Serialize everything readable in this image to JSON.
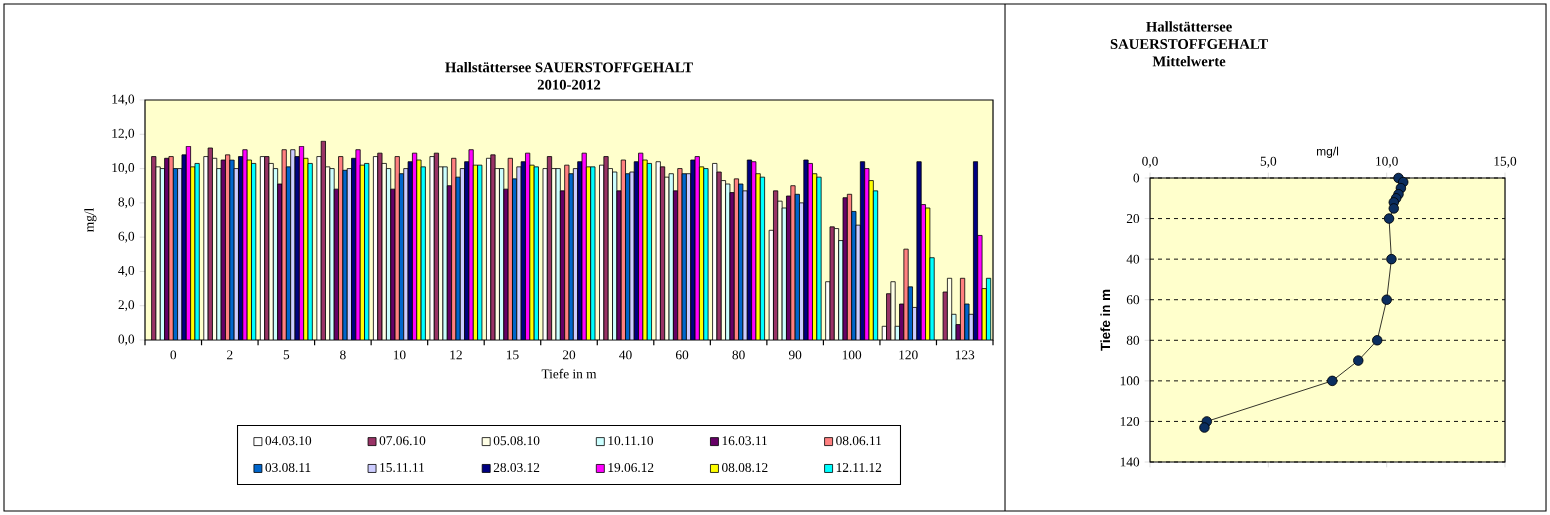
{
  "chart_data": [
    {
      "type": "bar",
      "title": "Hallstättersee SAUERSTOFFGEHALT",
      "subtitle": "2010-2012",
      "xlabel": "Tiefe in m",
      "ylabel": "mg/l",
      "categories": [
        "0",
        "2",
        "5",
        "8",
        "10",
        "12",
        "15",
        "20",
        "40",
        "60",
        "80",
        "90",
        "100",
        "120",
        "123"
      ],
      "ylim": [
        0,
        14
      ],
      "yticks": [
        {
          "value": 0,
          "label": "0,0"
        },
        {
          "value": 2,
          "label": "2,0"
        },
        {
          "value": 4,
          "label": "4,0"
        },
        {
          "value": 6,
          "label": "6,0"
        },
        {
          "value": 8,
          "label": "8,0"
        },
        {
          "value": 10,
          "label": "10,0"
        },
        {
          "value": 12,
          "label": "12,0"
        },
        {
          "value": 14,
          "label": "14,0"
        }
      ],
      "legend": "bottom",
      "series": [
        {
          "name": "04.03.10",
          "color": "#ffffff",
          "values": [
            null,
            10.7,
            10.7,
            10.7,
            10.7,
            10.7,
            10.6,
            10.0,
            10.2,
            10.4,
            10.3,
            6.4,
            3.4,
            0.8,
            null
          ]
        },
        {
          "name": "07.06.10",
          "color": "#993366",
          "values": [
            10.7,
            11.2,
            10.7,
            11.6,
            10.9,
            10.9,
            10.8,
            10.7,
            10.7,
            10.1,
            9.8,
            8.7,
            6.6,
            2.7,
            2.8
          ]
        },
        {
          "name": "05.08.10",
          "color": "#ffffe6",
          "values": [
            10.1,
            10.6,
            10.3,
            10.1,
            10.3,
            10.1,
            10.0,
            10.0,
            10.0,
            9.5,
            9.3,
            8.1,
            6.5,
            3.4,
            3.6
          ]
        },
        {
          "name": "10.11.10",
          "color": "#ccffff",
          "values": [
            10.0,
            10.0,
            10.0,
            10.0,
            10.0,
            10.1,
            10.0,
            10.0,
            9.8,
            9.7,
            9.1,
            7.7,
            5.8,
            0.8,
            1.5
          ]
        },
        {
          "name": "16.03.11",
          "color": "#660066",
          "values": [
            10.6,
            10.5,
            9.1,
            8.8,
            8.8,
            9.0,
            8.8,
            8.7,
            8.7,
            8.7,
            8.6,
            8.4,
            8.3,
            2.1,
            0.9
          ]
        },
        {
          "name": "08.06.11",
          "color": "#ff8080",
          "values": [
            10.7,
            10.8,
            11.1,
            10.7,
            10.7,
            10.6,
            10.6,
            10.2,
            10.5,
            10.0,
            9.4,
            9.0,
            8.5,
            5.3,
            3.6
          ]
        },
        {
          "name": "03.08.11",
          "color": "#0066cc",
          "values": [
            10.0,
            10.5,
            10.1,
            9.9,
            9.7,
            9.5,
            9.4,
            9.7,
            9.7,
            9.7,
            9.1,
            8.5,
            7.5,
            3.1,
            2.1
          ]
        },
        {
          "name": "15.11.11",
          "color": "#ccccff",
          "values": [
            10.0,
            10.0,
            11.1,
            10.0,
            10.0,
            10.0,
            10.1,
            10.0,
            9.8,
            9.7,
            8.7,
            8.0,
            6.7,
            1.9,
            1.5
          ]
        },
        {
          "name": "28.03.12",
          "color": "#000080",
          "values": [
            10.8,
            10.7,
            10.7,
            10.6,
            10.4,
            10.4,
            10.4,
            10.4,
            10.4,
            10.5,
            10.5,
            10.5,
            10.4,
            10.4,
            10.4
          ]
        },
        {
          "name": "19.06.12",
          "color": "#ff00ff",
          "values": [
            11.3,
            11.1,
            11.3,
            11.1,
            10.9,
            11.1,
            10.9,
            10.9,
            10.9,
            10.7,
            10.4,
            10.3,
            10.0,
            7.9,
            6.1
          ]
        },
        {
          "name": "08.08.12",
          "color": "#ffff00",
          "values": [
            10.1,
            10.5,
            10.6,
            10.2,
            10.5,
            10.2,
            10.2,
            10.1,
            10.5,
            10.1,
            9.7,
            9.7,
            9.3,
            7.7,
            3.0
          ]
        },
        {
          "name": "12.11.12",
          "color": "#00ffff",
          "values": [
            10.3,
            10.3,
            10.3,
            10.3,
            10.1,
            10.2,
            10.1,
            10.1,
            10.3,
            10.0,
            9.5,
            9.5,
            8.7,
            4.8,
            3.6
          ]
        }
      ]
    },
    {
      "type": "line",
      "title": "Hallstättersee SAUERSTOFFGEHALT",
      "subtitle": "Mittelwerte",
      "xlabel": "mg/l",
      "ylabel": "Tiefe in m",
      "x": [
        10.5,
        10.7,
        10.6,
        10.5,
        10.4,
        10.3,
        10.3,
        10.1,
        10.2,
        10.0,
        9.6,
        8.8,
        7.7,
        2.4,
        2.3
      ],
      "values": [
        0,
        2,
        5,
        8,
        10,
        12,
        15,
        20,
        40,
        60,
        80,
        90,
        100,
        120,
        123
      ],
      "color": "#0b2e5f",
      "marker": "circle",
      "grid": "y",
      "xlim": [
        0,
        15
      ],
      "xticks": [
        {
          "value": 0,
          "label": "0,0"
        },
        {
          "value": 5,
          "label": "5,0"
        },
        {
          "value": 10,
          "label": "10,0"
        },
        {
          "value": 15,
          "label": "15,0"
        }
      ],
      "ylim": [
        140,
        0
      ],
      "yticks": [
        0,
        20,
        40,
        60,
        80,
        100,
        120,
        140
      ]
    }
  ]
}
